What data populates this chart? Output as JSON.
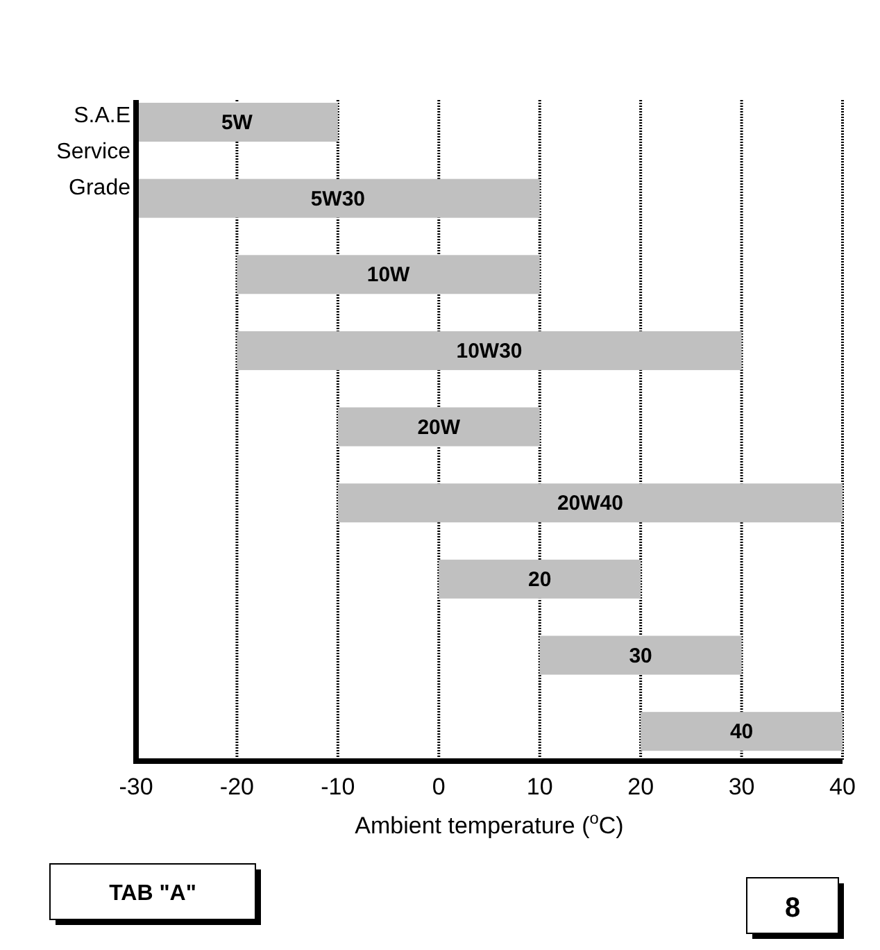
{
  "chart_data": {
    "type": "bar",
    "orientation": "horizontal",
    "ylabel": "S.A.E Service Grade",
    "xlabel": "Ambient temperature ($^{o}$C)",
    "categories": [
      "5W",
      "5W30",
      "10W",
      "10W30",
      "20W",
      "20W40",
      "20",
      "30",
      "40"
    ],
    "base": [
      -30,
      -30,
      -20,
      -20,
      -10,
      -10,
      0,
      10,
      20
    ],
    "values": [
      20,
      40,
      30,
      50,
      20,
      50,
      20,
      20,
      20
    ],
    "color": "#c0c0c0",
    "xlim": [
      -30,
      40
    ],
    "xticks": [
      -30,
      -20,
      -10,
      0,
      10,
      20,
      30,
      40
    ],
    "grid": "x",
    "tick_labels": "x",
    "annotations": [
      "TAB \"A\"",
      "8"
    ]
  }
}
